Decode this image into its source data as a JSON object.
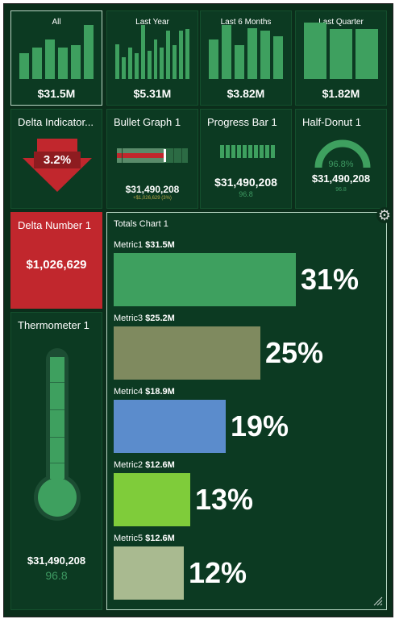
{
  "colors": {
    "bg": "#0b2e1b",
    "tile": "#0c3a22",
    "bar": "#3ea05f",
    "red": "#c1272d",
    "accent": "#3e9962"
  },
  "period_tiles": [
    {
      "label": "All",
      "value": "$31.5M",
      "bars": [
        0.45,
        0.55,
        0.7,
        0.55,
        0.6,
        0.95
      ]
    },
    {
      "label": "Last Year",
      "value": "$5.31M",
      "bars": [
        0.62,
        0.38,
        0.55,
        0.45,
        0.95,
        0.5,
        0.7,
        0.55,
        0.85,
        0.6,
        0.85,
        0.88
      ]
    },
    {
      "label": "Last 6 Months",
      "value": "$3.82M",
      "bars": [
        0.7,
        0.95,
        0.6,
        0.9,
        0.85,
        0.75
      ]
    },
    {
      "label": "Last Quarter",
      "value": "$1.82M",
      "bars": [
        1.0,
        0.88,
        0.88
      ]
    }
  ],
  "delta_indicator": {
    "title": "Delta Indicator...",
    "value": "3.2%"
  },
  "bullet_graph": {
    "title": "Bullet Graph 1",
    "value": "$31,490,208",
    "sub": "+$1,026,629 (3%)"
  },
  "progress_bar": {
    "title": "Progress Bar 1",
    "value": "$31,490,208",
    "sub": "96.8",
    "segments": 10
  },
  "half_donut": {
    "title": "Half-Donut 1",
    "pct": "96.8%",
    "value": "$31,490,208",
    "sub": "96.8"
  },
  "delta_number": {
    "title": "Delta Number 1",
    "value": "$1,026,629"
  },
  "thermometer": {
    "title": "Thermometer 1",
    "value": "$31,490,208",
    "sub": "96.8",
    "level": 0.968
  },
  "totals_chart": {
    "title": "Totals Chart 1",
    "items": [
      {
        "name": "Metric1",
        "amount": "$31.5M",
        "pct": "31%",
        "share": 31,
        "color": "#3ea05f"
      },
      {
        "name": "Metric3",
        "amount": "$25.2M",
        "pct": "25%",
        "share": 25,
        "color": "#7f8a5f"
      },
      {
        "name": "Metric4",
        "amount": "$18.9M",
        "pct": "19%",
        "share": 19,
        "color": "#5b8ccc"
      },
      {
        "name": "Metric2",
        "amount": "$12.6M",
        "pct": "13%",
        "share": 13,
        "color": "#7fcc3a"
      },
      {
        "name": "Metric5",
        "amount": "$12.6M",
        "pct": "12%",
        "share": 12,
        "color": "#a9ba90"
      }
    ]
  }
}
